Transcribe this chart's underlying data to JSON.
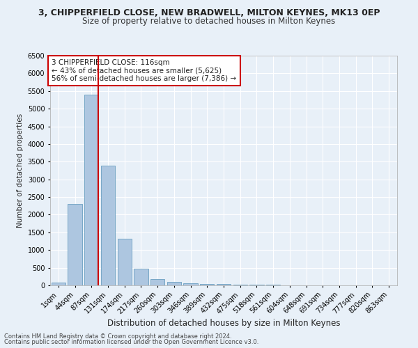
{
  "title": "3, CHIPPERFIELD CLOSE, NEW BRADWELL, MILTON KEYNES, MK13 0EP",
  "subtitle": "Size of property relative to detached houses in Milton Keynes",
  "xlabel": "Distribution of detached houses by size in Milton Keynes",
  "ylabel": "Number of detached properties",
  "categories": [
    "1sqm",
    "44sqm",
    "87sqm",
    "131sqm",
    "174sqm",
    "217sqm",
    "260sqm",
    "303sqm",
    "346sqm",
    "389sqm",
    "432sqm",
    "475sqm",
    "518sqm",
    "561sqm",
    "604sqm",
    "648sqm",
    "691sqm",
    "734sqm",
    "777sqm",
    "820sqm",
    "863sqm"
  ],
  "bar_values": [
    75,
    2300,
    5400,
    3380,
    1310,
    480,
    185,
    90,
    55,
    45,
    30,
    20,
    15,
    10,
    8,
    5,
    3,
    2,
    1,
    1,
    1
  ],
  "bar_color": "#adc6e0",
  "bar_edge_color": "#6a9fc0",
  "vline_color": "#cc0000",
  "vline_x_index": 2,
  "annotation_text": "3 CHIPPERFIELD CLOSE: 116sqm\n← 43% of detached houses are smaller (5,625)\n56% of semi-detached houses are larger (7,386) →",
  "annotation_box_color": "#ffffff",
  "annotation_box_edge": "#cc0000",
  "ylim": [
    0,
    6500
  ],
  "yticks": [
    0,
    500,
    1000,
    1500,
    2000,
    2500,
    3000,
    3500,
    4000,
    4500,
    5000,
    5500,
    6000,
    6500
  ],
  "bg_color": "#e8f0f8",
  "footer_line1": "Contains HM Land Registry data © Crown copyright and database right 2024.",
  "footer_line2": "Contains public sector information licensed under the Open Government Licence v3.0.",
  "title_fontsize": 9,
  "subtitle_fontsize": 8.5,
  "xlabel_fontsize": 8.5,
  "ylabel_fontsize": 7.5,
  "tick_fontsize": 7,
  "annotation_fontsize": 7.5,
  "footer_fontsize": 6
}
